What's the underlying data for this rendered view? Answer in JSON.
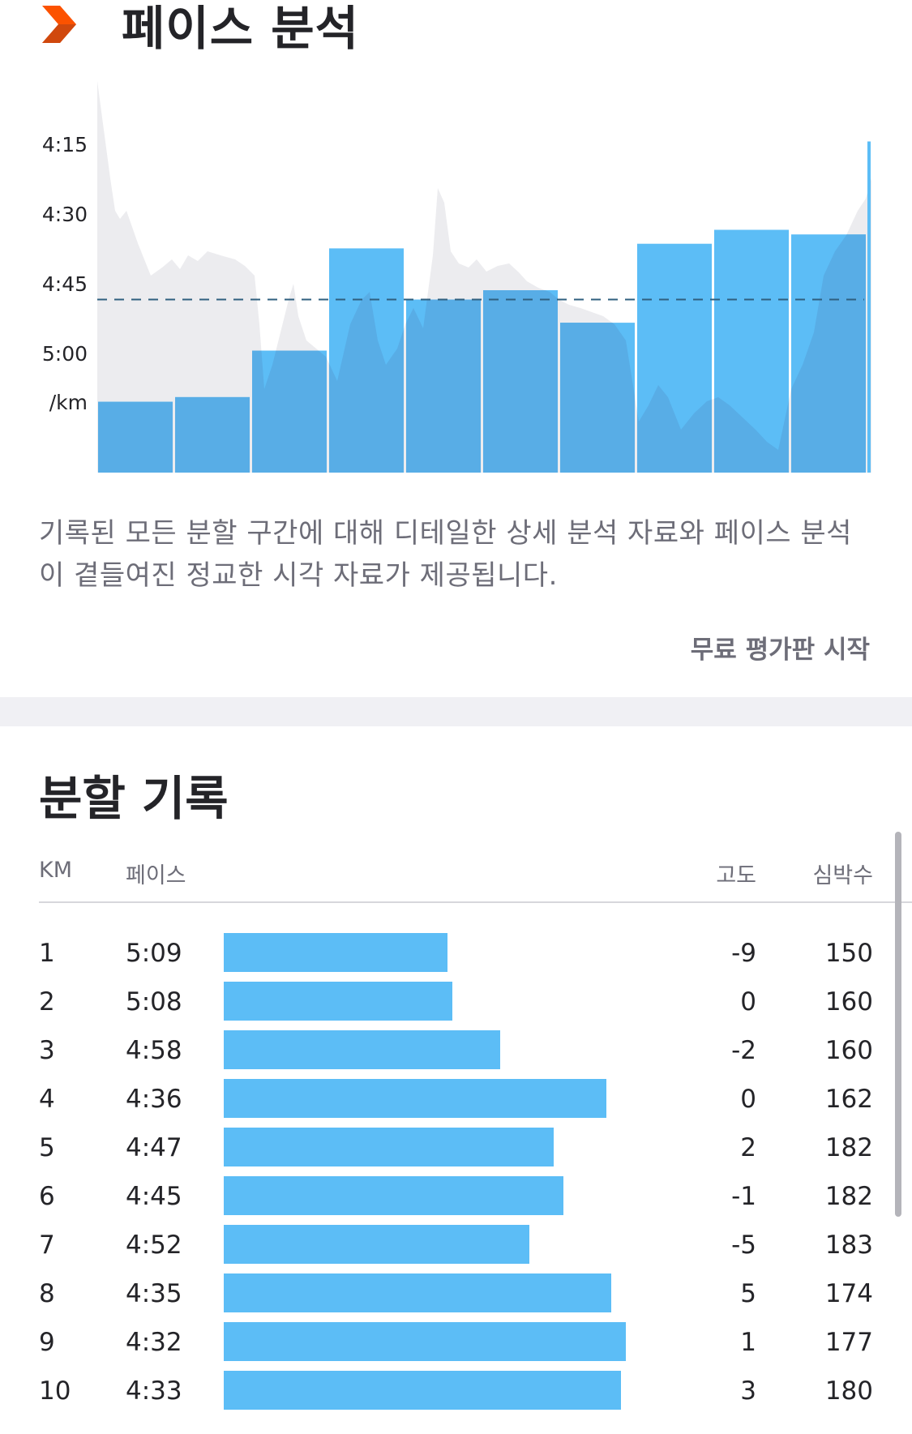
{
  "pace_analysis": {
    "title": "페이스 분석",
    "description": "기록된 모든 분할 구간에 대해 디테일한 상세 분석 자료와 페이스 분석이 곁들여진 정교한 시각 자료가 제공됩니다.",
    "trial_link": "무료 평가판 시작",
    "icon": "chevron-right-icon",
    "colors": {
      "accent": "#fc5200",
      "bar": "#5cbdf6",
      "bar_overlap": "#58ade6",
      "elevation_area": "#ececef",
      "average_line": "#2f5f7f"
    }
  },
  "chart_data": {
    "type": "bar",
    "ytick_labels": [
      "4:15",
      "4:30",
      "4:45",
      "5:00"
    ],
    "yunit_label": "/km",
    "y_axis_unit": "min/km",
    "ylim": [
      "5:10",
      "4:05"
    ],
    "y_inverted": true,
    "average_line": "4:47",
    "categories": [
      "1",
      "2",
      "3",
      "4",
      "5",
      "6",
      "7",
      "8",
      "9",
      "10"
    ],
    "values": [
      "5:09",
      "5:08",
      "4:58",
      "4:36",
      "4:47",
      "4:45",
      "4:52",
      "4:35",
      "4:32",
      "4:33"
    ],
    "values_seconds_per_km": [
      309,
      308,
      298,
      276,
      287,
      285,
      292,
      275,
      272,
      273
    ],
    "final_segment_value": "4:13",
    "grid": false,
    "legend": "none"
  },
  "splits": {
    "title": "분할 기록",
    "headers": {
      "km": "KM",
      "pace": "페이스",
      "elevation": "고도",
      "heart_rate": "심박수"
    },
    "rows": [
      {
        "km": "1",
        "pace": "5:09",
        "elevation": "-9",
        "heart_rate": "150"
      },
      {
        "km": "2",
        "pace": "5:08",
        "elevation": "0",
        "heart_rate": "160"
      },
      {
        "km": "3",
        "pace": "4:58",
        "elevation": "-2",
        "heart_rate": "160"
      },
      {
        "km": "4",
        "pace": "4:36",
        "elevation": "0",
        "heart_rate": "162"
      },
      {
        "km": "5",
        "pace": "4:47",
        "elevation": "2",
        "heart_rate": "182"
      },
      {
        "km": "6",
        "pace": "4:45",
        "elevation": "-1",
        "heart_rate": "182"
      },
      {
        "km": "7",
        "pace": "4:52",
        "elevation": "-5",
        "heart_rate": "183"
      },
      {
        "km": "8",
        "pace": "4:35",
        "elevation": "5",
        "heart_rate": "174"
      },
      {
        "km": "9",
        "pace": "4:32",
        "elevation": "1",
        "heart_rate": "177"
      },
      {
        "km": "10",
        "pace": "4:33",
        "elevation": "3",
        "heart_rate": "180"
      }
    ]
  }
}
